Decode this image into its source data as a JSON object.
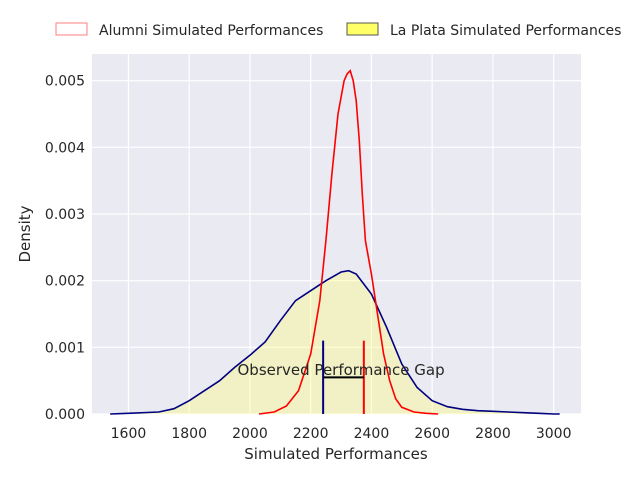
{
  "chart_data": {
    "type": "area",
    "xlabel": "Simulated Performances",
    "ylabel": "Density",
    "xlim": [
      1480,
      3090
    ],
    "ylim": [
      0,
      0.0054
    ],
    "xticks": [
      1600,
      1800,
      2000,
      2200,
      2400,
      2600,
      2800,
      3000
    ],
    "yticks": [
      0.0,
      0.001,
      0.002,
      0.003,
      0.004,
      0.005
    ],
    "ytick_labels": [
      "0.000",
      "0.001",
      "0.002",
      "0.003",
      "0.004",
      "0.005"
    ],
    "grid": true,
    "legend_position": "top (outside plot)",
    "series": [
      {
        "name": "Alumni Simulated Performances",
        "kind": "line",
        "color": "#ff0000",
        "legend_color": "#ff7f7f",
        "x": [
          2030,
          2080,
          2120,
          2160,
          2200,
          2230,
          2250,
          2270,
          2290,
          2310,
          2320,
          2330,
          2340,
          2350,
          2360,
          2370,
          2380,
          2400,
          2420,
          2440,
          2460,
          2480,
          2500,
          2540,
          2580,
          2620
        ],
        "y": [
          0.0,
          3e-05,
          0.00012,
          0.00035,
          0.0009,
          0.0017,
          0.0026,
          0.0036,
          0.0045,
          0.005,
          0.0051,
          0.00515,
          0.005,
          0.0047,
          0.0041,
          0.0033,
          0.0026,
          0.0021,
          0.0015,
          0.0009,
          0.0005,
          0.00023,
          0.0001,
          3e-05,
          1e-05,
          0.0
        ]
      },
      {
        "name": "La Plata Simulated Performances",
        "kind": "filled",
        "line_color": "#000080",
        "fill_color": "#ffff66",
        "legend_color": "#ffff66",
        "x": [
          1540,
          1600,
          1700,
          1750,
          1800,
          1850,
          1900,
          1950,
          2000,
          2050,
          2100,
          2150,
          2200,
          2250,
          2300,
          2325,
          2350,
          2400,
          2450,
          2500,
          2550,
          2600,
          2650,
          2700,
          2750,
          2800,
          2850,
          2900,
          2950,
          3000,
          3020
        ],
        "y": [
          0.0,
          1e-05,
          3e-05,
          8e-05,
          0.0002,
          0.00035,
          0.0005,
          0.0007,
          0.00088,
          0.00108,
          0.0014,
          0.0017,
          0.00185,
          0.002,
          0.00213,
          0.00215,
          0.0021,
          0.0018,
          0.0013,
          0.00075,
          0.0004,
          0.0002,
          0.00011,
          7e-05,
          5e-05,
          4e-05,
          3e-05,
          2e-05,
          1e-05,
          0.0,
          0.0
        ]
      }
    ],
    "annotations": [
      {
        "text": "Observed Performance Gap",
        "x": 2300,
        "y": 0.00066
      }
    ],
    "markers": [
      {
        "name": "La Plata observed",
        "x": 2241,
        "y0": 0,
        "y1": 0.0011,
        "color": "#000080"
      },
      {
        "name": "Alumni observed",
        "x": 2375,
        "y0": 0,
        "y1": 0.0011,
        "color": "#ff0000"
      }
    ],
    "gap_bar": {
      "x0": 2241,
      "x1": 2375,
      "y": 0.00055,
      "color": "#000000"
    }
  }
}
